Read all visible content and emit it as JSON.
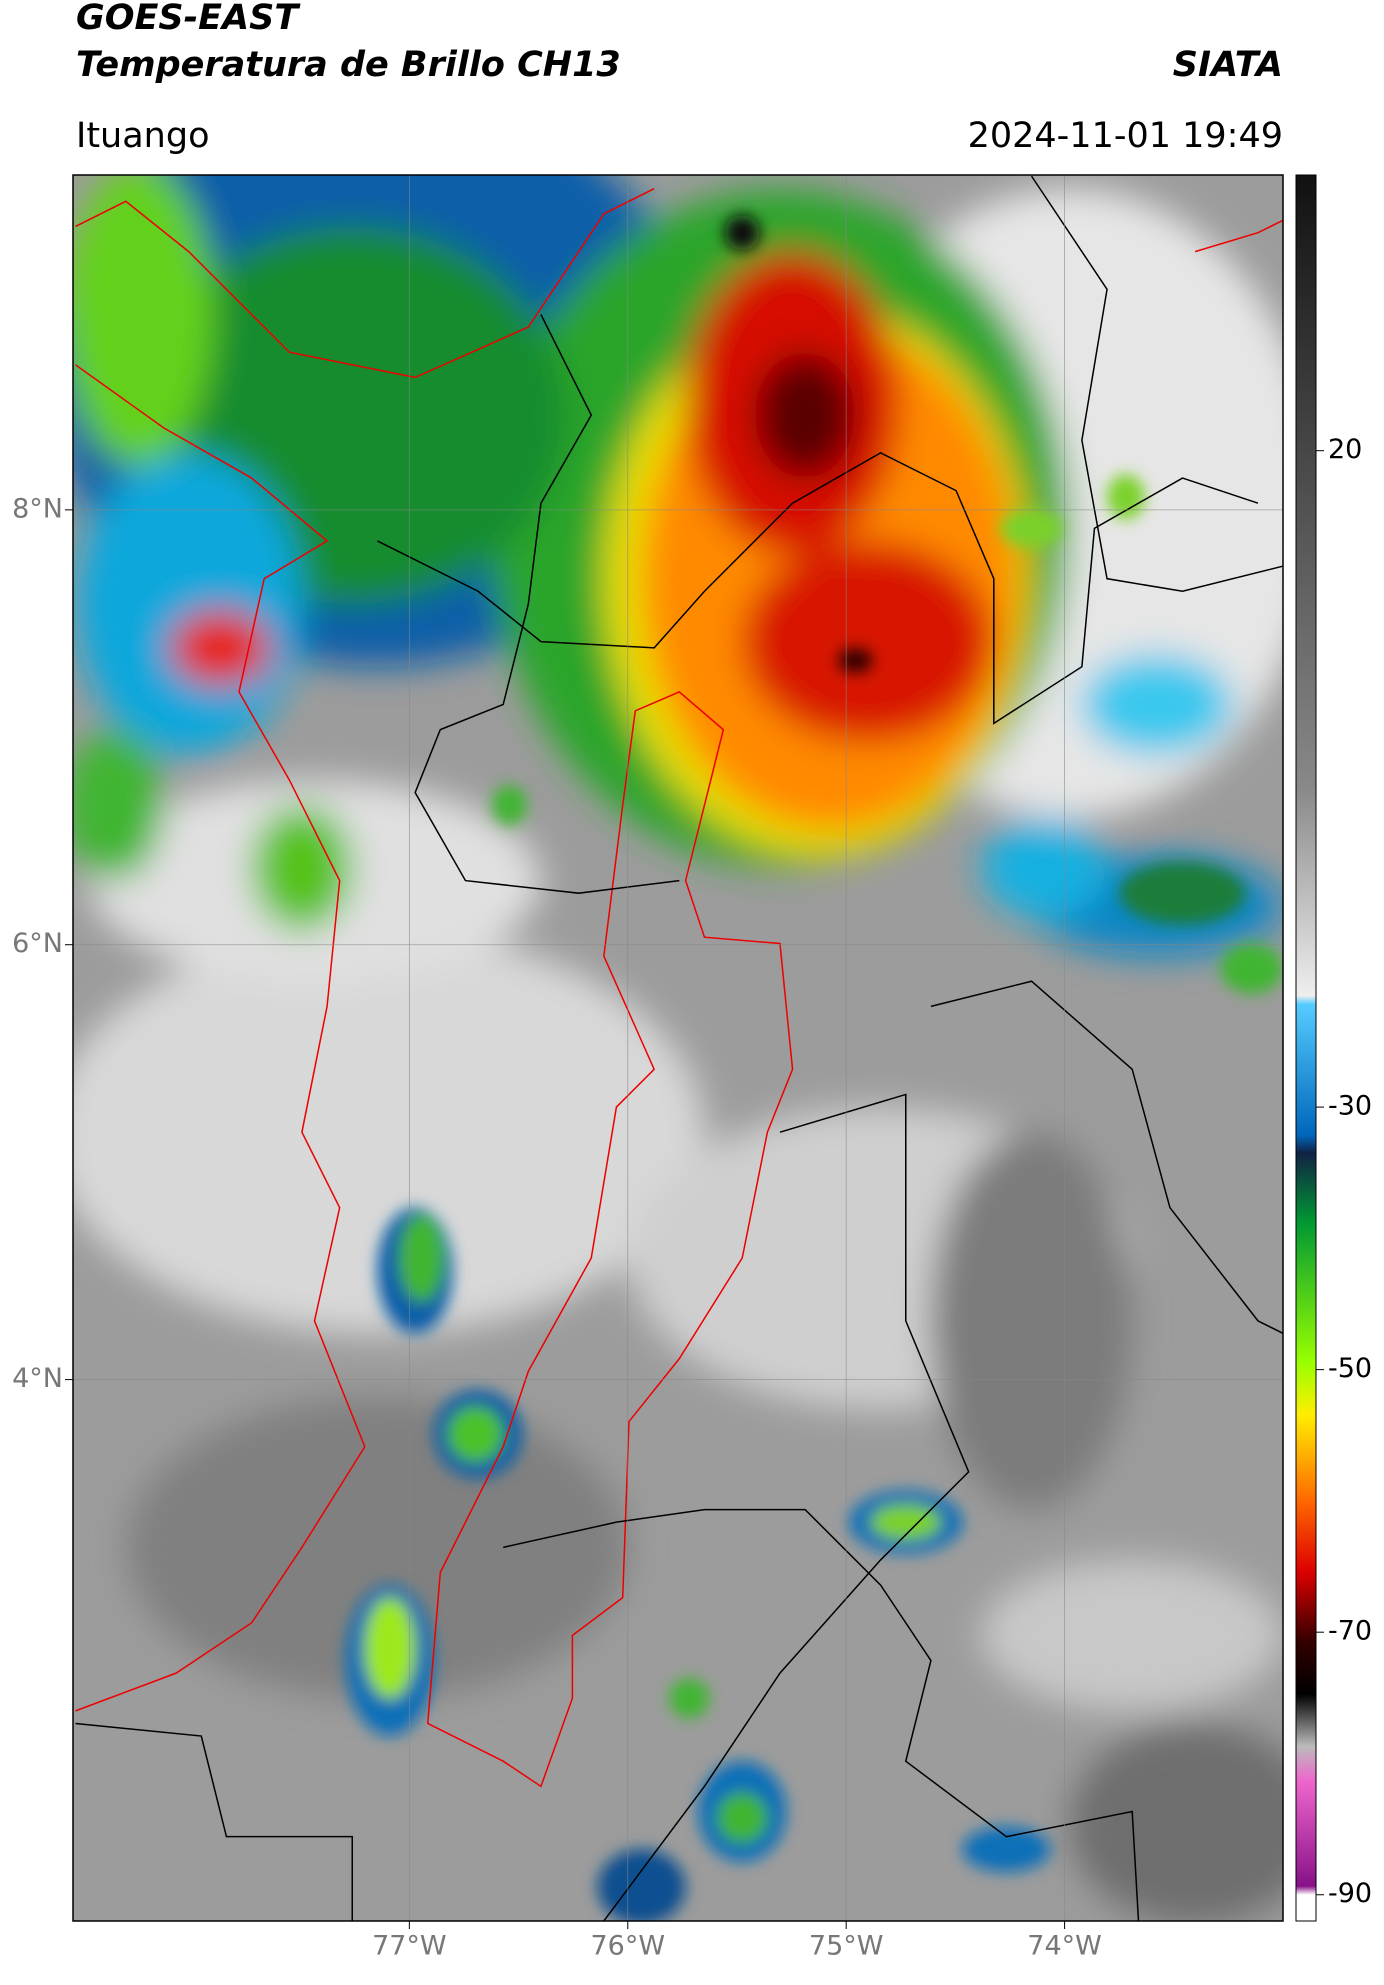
{
  "header": {
    "title": "GOES-EAST",
    "subtitle": "Temperatura de Brillo CH13",
    "source": "SIATA",
    "location": "Ituango",
    "datetime": "2024-11-01 19:49"
  },
  "map": {
    "xlim": [
      -78.54,
      -73.0
    ],
    "ylim": [
      1.51,
      9.54
    ],
    "xticks": [
      {
        "value": -77,
        "label": "77°W"
      },
      {
        "value": -76,
        "label": "76°W"
      },
      {
        "value": -75,
        "label": "75°W"
      },
      {
        "value": -74,
        "label": "74°W"
      }
    ],
    "yticks": [
      {
        "value": 8,
        "label": "8°N"
      },
      {
        "value": 6,
        "label": "6°N"
      },
      {
        "value": 4,
        "label": "4°N"
      }
    ],
    "grid": true
  },
  "colorbar": {
    "lim": [
      -92,
      41
    ],
    "ticks": [
      20,
      -30,
      -50,
      -70,
      -90
    ]
  }
}
